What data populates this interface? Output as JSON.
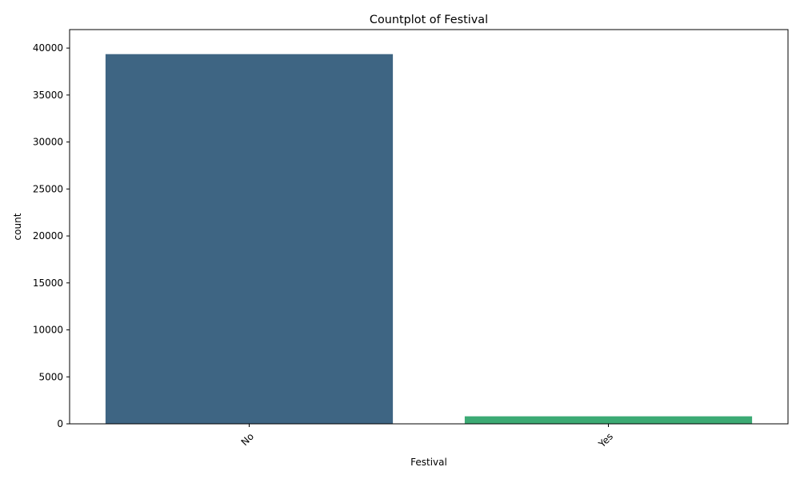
{
  "chart_data": {
    "type": "bar",
    "title": "Countplot of Festival",
    "xlabel": "Festival",
    "ylabel": "count",
    "categories": [
      "No",
      "Yes"
    ],
    "values": [
      39350,
      800
    ],
    "colors": [
      "#3e6583",
      "#3caa74"
    ],
    "ylim": [
      0,
      41967
    ],
    "yticks": [
      0,
      5000,
      10000,
      15000,
      20000,
      25000,
      30000,
      35000,
      40000
    ],
    "ytick_labels": [
      "0",
      "5000",
      "10000",
      "15000",
      "20000",
      "25000",
      "30000",
      "35000",
      "40000"
    ],
    "xtick_rotation": 45,
    "grid": false,
    "legend": "none"
  }
}
